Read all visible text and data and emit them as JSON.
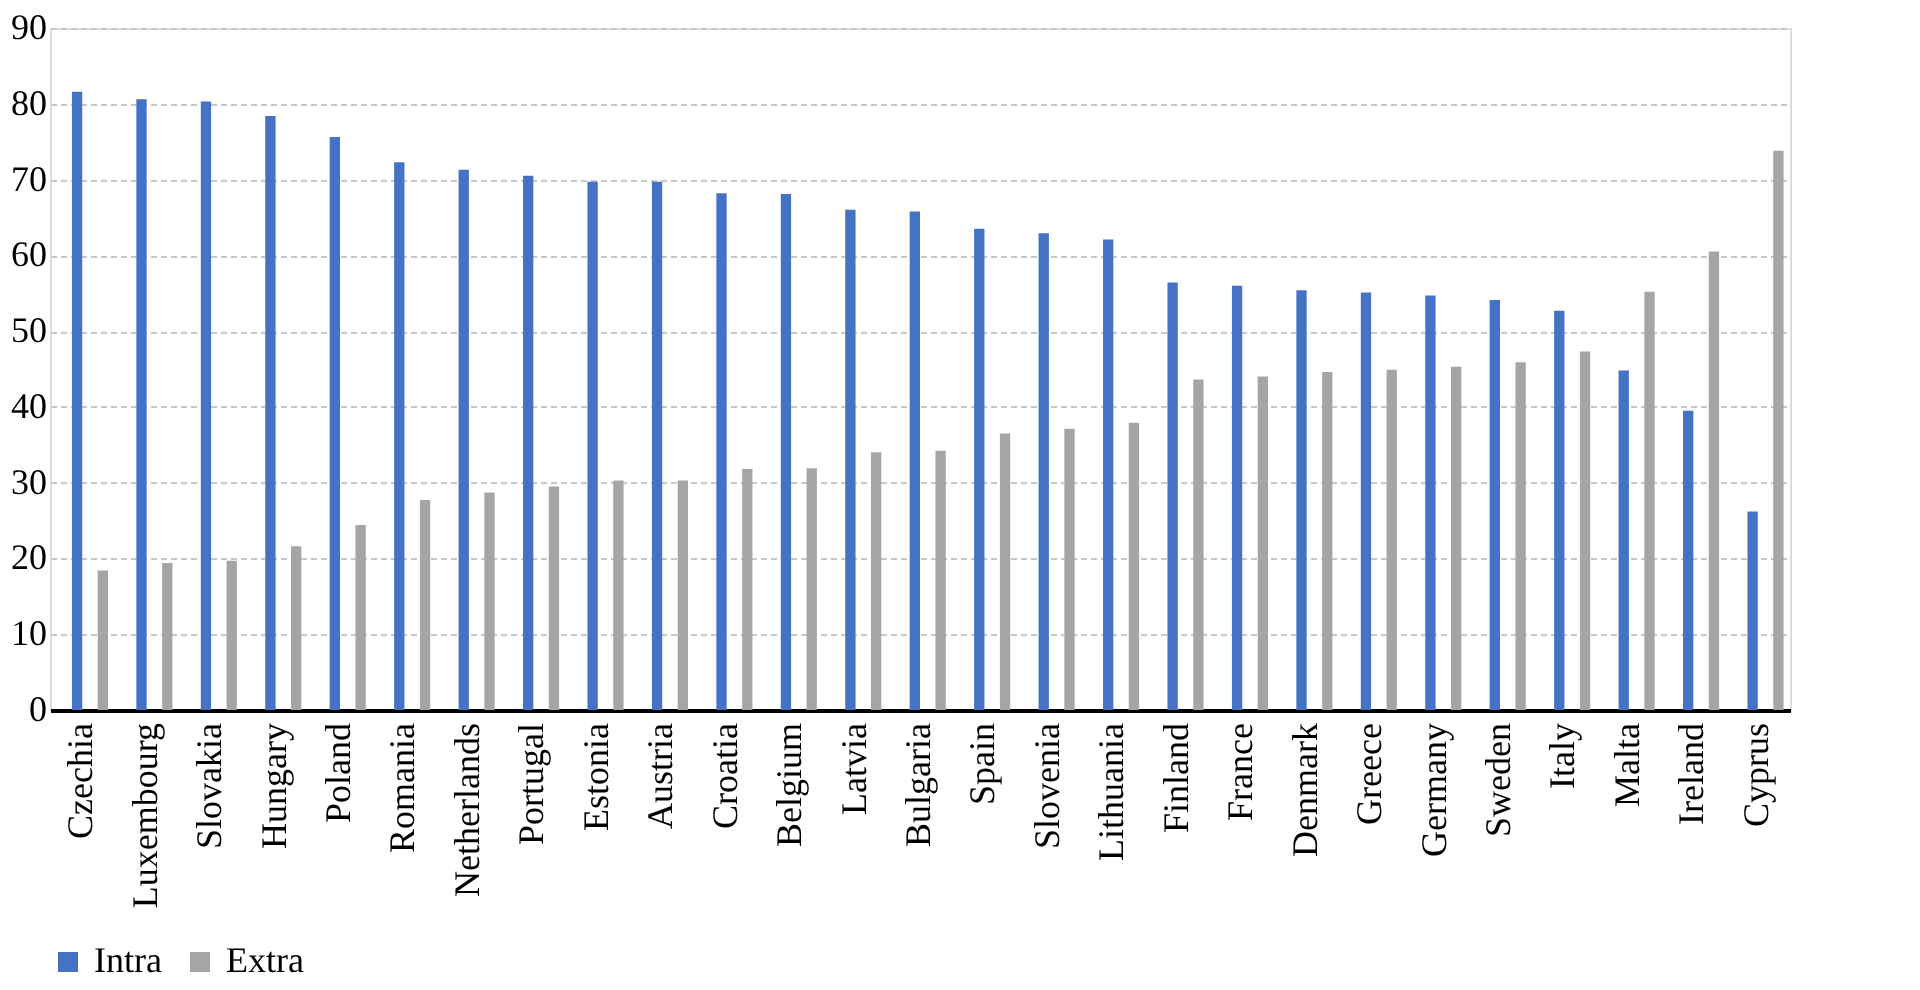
{
  "chart_data": {
    "type": "bar",
    "categories": [
      "Czechia",
      "Luxembourg",
      "Slovakia",
      "Hungary",
      "Poland",
      "Romania",
      "Netherlands",
      "Portugal",
      "Estonia",
      "Austria",
      "Croatia",
      "Belgium",
      "Latvia",
      "Bulgaria",
      "Spain",
      "Slovenia",
      "Lithuania",
      "Finland",
      "France",
      "Denmark",
      "Greece",
      "Germany",
      "Sweden",
      "Italy",
      "Malta",
      "Ireland",
      "Cyprus"
    ],
    "series": [
      {
        "name": "Intra",
        "color": "#4472c4",
        "values": [
          81.6,
          80.6,
          80.3,
          78.4,
          75.6,
          72.3,
          71.3,
          70.5,
          69.7,
          69.7,
          68.2,
          68.1,
          66.0,
          65.8,
          63.5,
          62.9,
          62.1,
          56.4,
          56.0,
          55.4,
          55.1,
          54.7,
          54.1,
          52.7,
          44.8,
          39.5,
          26.2
        ]
      },
      {
        "name": "Extra",
        "color": "#a5a5a5",
        "values": [
          18.4,
          19.4,
          19.7,
          21.6,
          24.4,
          27.7,
          28.7,
          29.5,
          30.3,
          30.3,
          31.8,
          31.9,
          34.0,
          34.2,
          36.5,
          37.1,
          37.9,
          43.6,
          44.0,
          44.6,
          44.9,
          45.3,
          45.9,
          47.3,
          55.2,
          60.5,
          73.8
        ]
      }
    ],
    "ylim": [
      0,
      90
    ],
    "yticks": [
      0,
      10,
      20,
      30,
      40,
      50,
      60,
      70,
      80,
      90
    ],
    "grid": "y",
    "legend": "bottom"
  }
}
